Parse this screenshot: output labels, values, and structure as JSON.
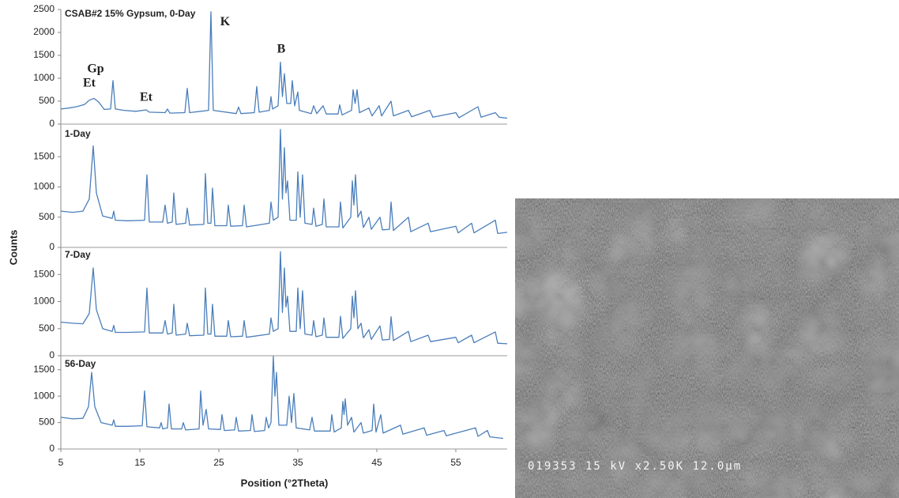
{
  "chart_data": {
    "type": "line",
    "xlabel": "Position (°2Theta)",
    "ylabel": "Counts",
    "color": "#4a7ebb",
    "xlim": [
      5,
      61.5
    ],
    "xticks": [
      5,
      15,
      25,
      35,
      45,
      55
    ],
    "panels": [
      {
        "label": "CSAB#2 15% Gypsum, 0-Day",
        "ylim": [
          0,
          2500
        ],
        "yticks": [
          0,
          500,
          1000,
          1500,
          2000,
          2500
        ],
        "x": [
          5,
          6,
          7,
          8,
          8.6,
          9.2,
          9.8,
          10.5,
          11.3,
          11.6,
          11.9,
          13,
          14.5,
          15.8,
          16.2,
          18.2,
          18.5,
          18.8,
          20.7,
          21,
          21.3,
          23.7,
          24,
          24.3,
          27.2,
          27.5,
          27.8,
          29.5,
          29.8,
          30.1,
          31.4,
          31.6,
          31.8,
          32.5,
          32.8,
          33.05,
          33.3,
          33.6,
          34.1,
          34.3,
          34.6,
          35,
          35.2,
          36.7,
          37,
          37.4,
          38.2,
          38.6,
          40.1,
          40.3,
          40.6,
          41.8,
          42,
          42.25,
          42.5,
          42.8,
          44,
          44.4,
          45.3,
          45.6,
          46.8,
          47.1,
          49,
          49.4,
          51.7,
          52.1,
          55,
          55.4,
          57.8,
          58.2,
          60,
          60.5,
          61.5
        ],
        "values": [
          330,
          350,
          380,
          430,
          520,
          560,
          480,
          320,
          330,
          950,
          330,
          300,
          280,
          310,
          260,
          250,
          330,
          240,
          250,
          780,
          250,
          300,
          2450,
          300,
          230,
          370,
          230,
          250,
          820,
          260,
          300,
          600,
          330,
          400,
          1350,
          600,
          1100,
          450,
          450,
          950,
          400,
          700,
          300,
          230,
          400,
          230,
          400,
          220,
          220,
          420,
          200,
          300,
          750,
          450,
          750,
          250,
          350,
          180,
          400,
          180,
          500,
          180,
          300,
          160,
          300,
          150,
          250,
          140,
          380,
          150,
          250,
          150,
          130
        ],
        "annotations": [
          {
            "text": "Et",
            "x": 8.6,
            "y": 880
          },
          {
            "text": "Gp",
            "x": 9.4,
            "y": 1190
          },
          {
            "text": "Et",
            "x": 15.8,
            "y": 570
          },
          {
            "text": "K",
            "x": 25.8,
            "y": 2220
          },
          {
            "text": "B",
            "x": 32.9,
            "y": 1620
          }
        ]
      },
      {
        "label": "1-Day",
        "ylim": [
          0,
          2000
        ],
        "yticks": [
          0,
          500,
          1000,
          1500
        ],
        "x": [
          5,
          6.5,
          7.8,
          8.6,
          9.1,
          9.5,
          10.3,
          11.5,
          11.7,
          11.9,
          13.5,
          15.6,
          15.9,
          16.2,
          17.9,
          18.2,
          18.5,
          19.1,
          19.3,
          19.6,
          20.8,
          21,
          21.3,
          23.1,
          23.3,
          23.6,
          24,
          24.2,
          24.5,
          26,
          26.2,
          26.5,
          28,
          28.2,
          28.5,
          31.4,
          31.6,
          31.9,
          32.5,
          32.8,
          33.05,
          33.3,
          33.5,
          33.7,
          34,
          34.8,
          35,
          35.3,
          35.6,
          35.9,
          36.8,
          37,
          37.3,
          38.1,
          38.3,
          38.6,
          40.2,
          40.4,
          40.7,
          41.7,
          41.9,
          42.1,
          42.3,
          42.6,
          43,
          43.3,
          44,
          44.3,
          45.4,
          45.7,
          46.6,
          46.8,
          47.1,
          49,
          49.3,
          51.5,
          51.8,
          55,
          55.3,
          57,
          57.3,
          60,
          60.3,
          61.5
        ],
        "values": [
          600,
          580,
          600,
          800,
          1680,
          900,
          520,
          480,
          600,
          450,
          440,
          450,
          1200,
          420,
          420,
          700,
          400,
          420,
          900,
          380,
          400,
          650,
          370,
          380,
          1220,
          400,
          400,
          980,
          360,
          360,
          700,
          350,
          360,
          700,
          340,
          400,
          750,
          450,
          500,
          1950,
          800,
          1650,
          900,
          1100,
          450,
          450,
          1250,
          500,
          1200,
          400,
          380,
          650,
          350,
          380,
          800,
          340,
          340,
          750,
          320,
          500,
          1100,
          700,
          1200,
          500,
          600,
          330,
          500,
          300,
          500,
          290,
          300,
          750,
          280,
          500,
          260,
          400,
          260,
          350,
          240,
          400,
          240,
          450,
          230,
          250
        ]
      },
      {
        "label": "7-Day",
        "ylim": [
          0,
          2000
        ],
        "yticks": [
          0,
          500,
          1000,
          1500
        ],
        "x": [
          5,
          6.5,
          7.8,
          8.6,
          9.1,
          9.5,
          10.3,
          11.5,
          11.7,
          11.9,
          13.5,
          15.6,
          15.9,
          16.2,
          17.9,
          18.2,
          18.5,
          19.1,
          19.3,
          19.6,
          20.8,
          21,
          21.3,
          23.1,
          23.3,
          23.6,
          24,
          24.2,
          24.5,
          26,
          26.2,
          26.5,
          28,
          28.2,
          28.5,
          31.4,
          31.6,
          31.9,
          32.5,
          32.8,
          33.05,
          33.3,
          33.5,
          33.7,
          34,
          34.8,
          35,
          35.3,
          35.6,
          35.9,
          36.8,
          37,
          37.3,
          38.1,
          38.3,
          38.6,
          40.2,
          40.4,
          40.7,
          41.7,
          41.9,
          42.1,
          42.3,
          42.6,
          43,
          43.3,
          44,
          44.3,
          45.4,
          45.7,
          46.6,
          46.8,
          47.1,
          49,
          49.3,
          51.5,
          51.8,
          55,
          55.3,
          57,
          57.3,
          60,
          60.3,
          61.5
        ],
        "values": [
          620,
          600,
          590,
          780,
          1620,
          850,
          500,
          450,
          560,
          430,
          430,
          440,
          1250,
          420,
          420,
          650,
          400,
          420,
          950,
          380,
          400,
          600,
          370,
          380,
          1250,
          400,
          400,
          950,
          360,
          360,
          650,
          350,
          360,
          650,
          340,
          400,
          700,
          450,
          500,
          1920,
          800,
          1620,
          900,
          1100,
          450,
          450,
          1250,
          500,
          1200,
          400,
          380,
          650,
          350,
          380,
          700,
          340,
          340,
          730,
          320,
          500,
          1100,
          700,
          1200,
          500,
          600,
          330,
          480,
          300,
          550,
          290,
          300,
          720,
          280,
          450,
          260,
          380,
          260,
          340,
          240,
          380,
          240,
          440,
          230,
          220
        ]
      },
      {
        "label": "56-Day",
        "ylim": [
          0,
          1750
        ],
        "yticks": [
          0,
          500,
          1000,
          1500
        ],
        "x": [
          5,
          6.5,
          7.8,
          8.5,
          8.9,
          9.3,
          10.1,
          11.5,
          11.7,
          11.9,
          13.5,
          15.3,
          15.6,
          15.9,
          17.5,
          17.7,
          17.9,
          18.5,
          18.7,
          19,
          20.3,
          20.5,
          20.8,
          22.5,
          22.7,
          23,
          23.4,
          23.7,
          25.2,
          25.4,
          25.7,
          27,
          27.2,
          27.5,
          29,
          29.2,
          29.5,
          30.8,
          31,
          31.3,
          31.6,
          31.9,
          32.1,
          32.3,
          32.6,
          33.6,
          33.9,
          34.2,
          34.5,
          34.8,
          36.5,
          36.8,
          37.1,
          39.1,
          39.3,
          39.6,
          40.5,
          40.7,
          40.85,
          41,
          41.3,
          41.8,
          42.1,
          43,
          43.3,
          44.4,
          44.6,
          44.9,
          45.5,
          45.8,
          48,
          48.3,
          51,
          51.3,
          53.5,
          53.8,
          57.5,
          57.8,
          59,
          59.3,
          61
        ],
        "values": [
          600,
          570,
          580,
          800,
          1450,
          800,
          500,
          450,
          550,
          430,
          430,
          440,
          1100,
          420,
          400,
          500,
          380,
          400,
          850,
          380,
          380,
          500,
          360,
          380,
          1100,
          450,
          750,
          380,
          370,
          650,
          350,
          360,
          600,
          340,
          350,
          650,
          330,
          350,
          600,
          400,
          500,
          1750,
          1000,
          1450,
          450,
          450,
          1000,
          500,
          1050,
          400,
          360,
          600,
          340,
          340,
          650,
          320,
          400,
          900,
          650,
          950,
          450,
          600,
          320,
          500,
          300,
          350,
          850,
          320,
          650,
          300,
          450,
          280,
          400,
          260,
          350,
          250,
          400,
          240,
          350,
          230,
          200
        ]
      }
    ]
  },
  "image": {
    "caption": "019353  15 kV  x2.50K  12.0µm"
  }
}
